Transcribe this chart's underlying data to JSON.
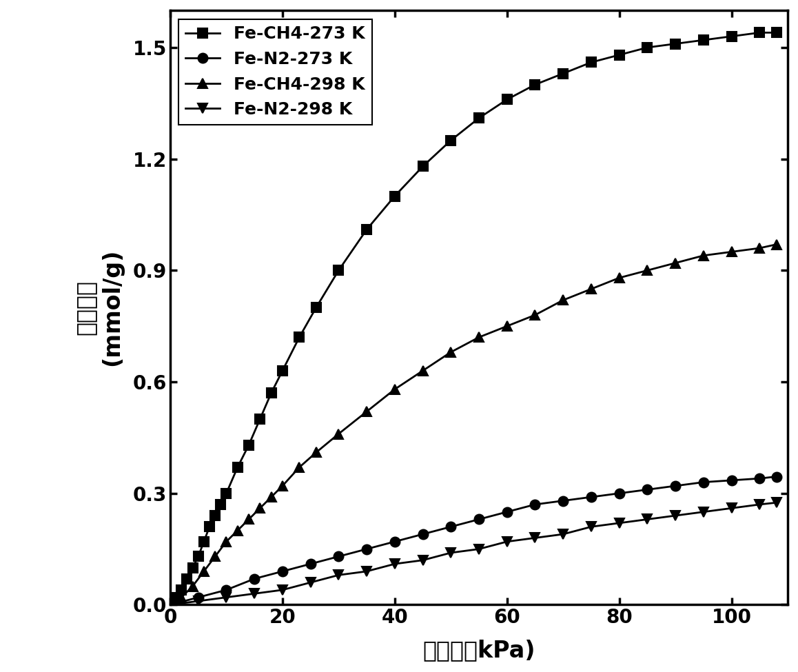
{
  "title": "",
  "xlabel_cn": "压力　（kPa)",
  "ylabel_cn_line1": "吸",
  "ylabel_cn_line2": "附",
  "ylabel_cn_line3": "容",
  "ylabel_cn_line4": "量",
  "ylabel_unit": "(mmol/g)",
  "xlim": [
    0,
    110
  ],
  "ylim": [
    0,
    1.6
  ],
  "xticks": [
    0,
    20,
    40,
    60,
    80,
    100
  ],
  "yticks": [
    0.0,
    0.3,
    0.6,
    0.9,
    1.2,
    1.5
  ],
  "series": [
    {
      "label": "Fe-CH4-273 K",
      "marker": "s",
      "color": "#000000",
      "x": [
        0,
        1,
        2,
        3,
        4,
        5,
        6,
        7,
        8,
        9,
        10,
        12,
        14,
        16,
        18,
        20,
        23,
        26,
        30,
        35,
        40,
        45,
        50,
        55,
        60,
        65,
        70,
        75,
        80,
        85,
        90,
        95,
        100,
        105,
        108
      ],
      "y": [
        0.0,
        0.02,
        0.04,
        0.07,
        0.1,
        0.13,
        0.17,
        0.21,
        0.24,
        0.27,
        0.3,
        0.37,
        0.43,
        0.5,
        0.57,
        0.63,
        0.72,
        0.8,
        0.9,
        1.01,
        1.1,
        1.18,
        1.25,
        1.31,
        1.36,
        1.4,
        1.43,
        1.46,
        1.48,
        1.5,
        1.51,
        1.52,
        1.53,
        1.54,
        1.54
      ]
    },
    {
      "label": "Fe-N2-273 K",
      "marker": "o",
      "color": "#000000",
      "x": [
        0,
        5,
        10,
        15,
        20,
        25,
        30,
        35,
        40,
        45,
        50,
        55,
        60,
        65,
        70,
        75,
        80,
        85,
        90,
        95,
        100,
        105,
        108
      ],
      "y": [
        0.0,
        0.02,
        0.04,
        0.07,
        0.09,
        0.11,
        0.13,
        0.15,
        0.17,
        0.19,
        0.21,
        0.23,
        0.25,
        0.27,
        0.28,
        0.29,
        0.3,
        0.31,
        0.32,
        0.33,
        0.335,
        0.34,
        0.345
      ]
    },
    {
      "label": "Fe-CH4-298 K",
      "marker": "^",
      "color": "#000000",
      "x": [
        0,
        2,
        4,
        6,
        8,
        10,
        12,
        14,
        16,
        18,
        20,
        23,
        26,
        30,
        35,
        40,
        45,
        50,
        55,
        60,
        65,
        70,
        75,
        80,
        85,
        90,
        95,
        100,
        105,
        108
      ],
      "y": [
        0.0,
        0.02,
        0.05,
        0.09,
        0.13,
        0.17,
        0.2,
        0.23,
        0.26,
        0.29,
        0.32,
        0.37,
        0.41,
        0.46,
        0.52,
        0.58,
        0.63,
        0.68,
        0.72,
        0.75,
        0.78,
        0.82,
        0.85,
        0.88,
        0.9,
        0.92,
        0.94,
        0.95,
        0.96,
        0.97
      ]
    },
    {
      "label": "Fe-N2-298 K",
      "marker": "v",
      "color": "#000000",
      "x": [
        0,
        5,
        10,
        15,
        20,
        25,
        30,
        35,
        40,
        45,
        50,
        55,
        60,
        65,
        70,
        75,
        80,
        85,
        90,
        95,
        100,
        105,
        108
      ],
      "y": [
        0.0,
        0.01,
        0.02,
        0.03,
        0.04,
        0.06,
        0.08,
        0.09,
        0.11,
        0.12,
        0.14,
        0.15,
        0.17,
        0.18,
        0.19,
        0.21,
        0.22,
        0.23,
        0.24,
        0.25,
        0.26,
        0.27,
        0.275
      ]
    }
  ],
  "background_color": "#ffffff",
  "linewidth": 2.0,
  "markersize": 10,
  "legend_fontsize": 18,
  "axis_fontsize": 24,
  "tick_fontsize": 20,
  "spine_linewidth": 2.5
}
